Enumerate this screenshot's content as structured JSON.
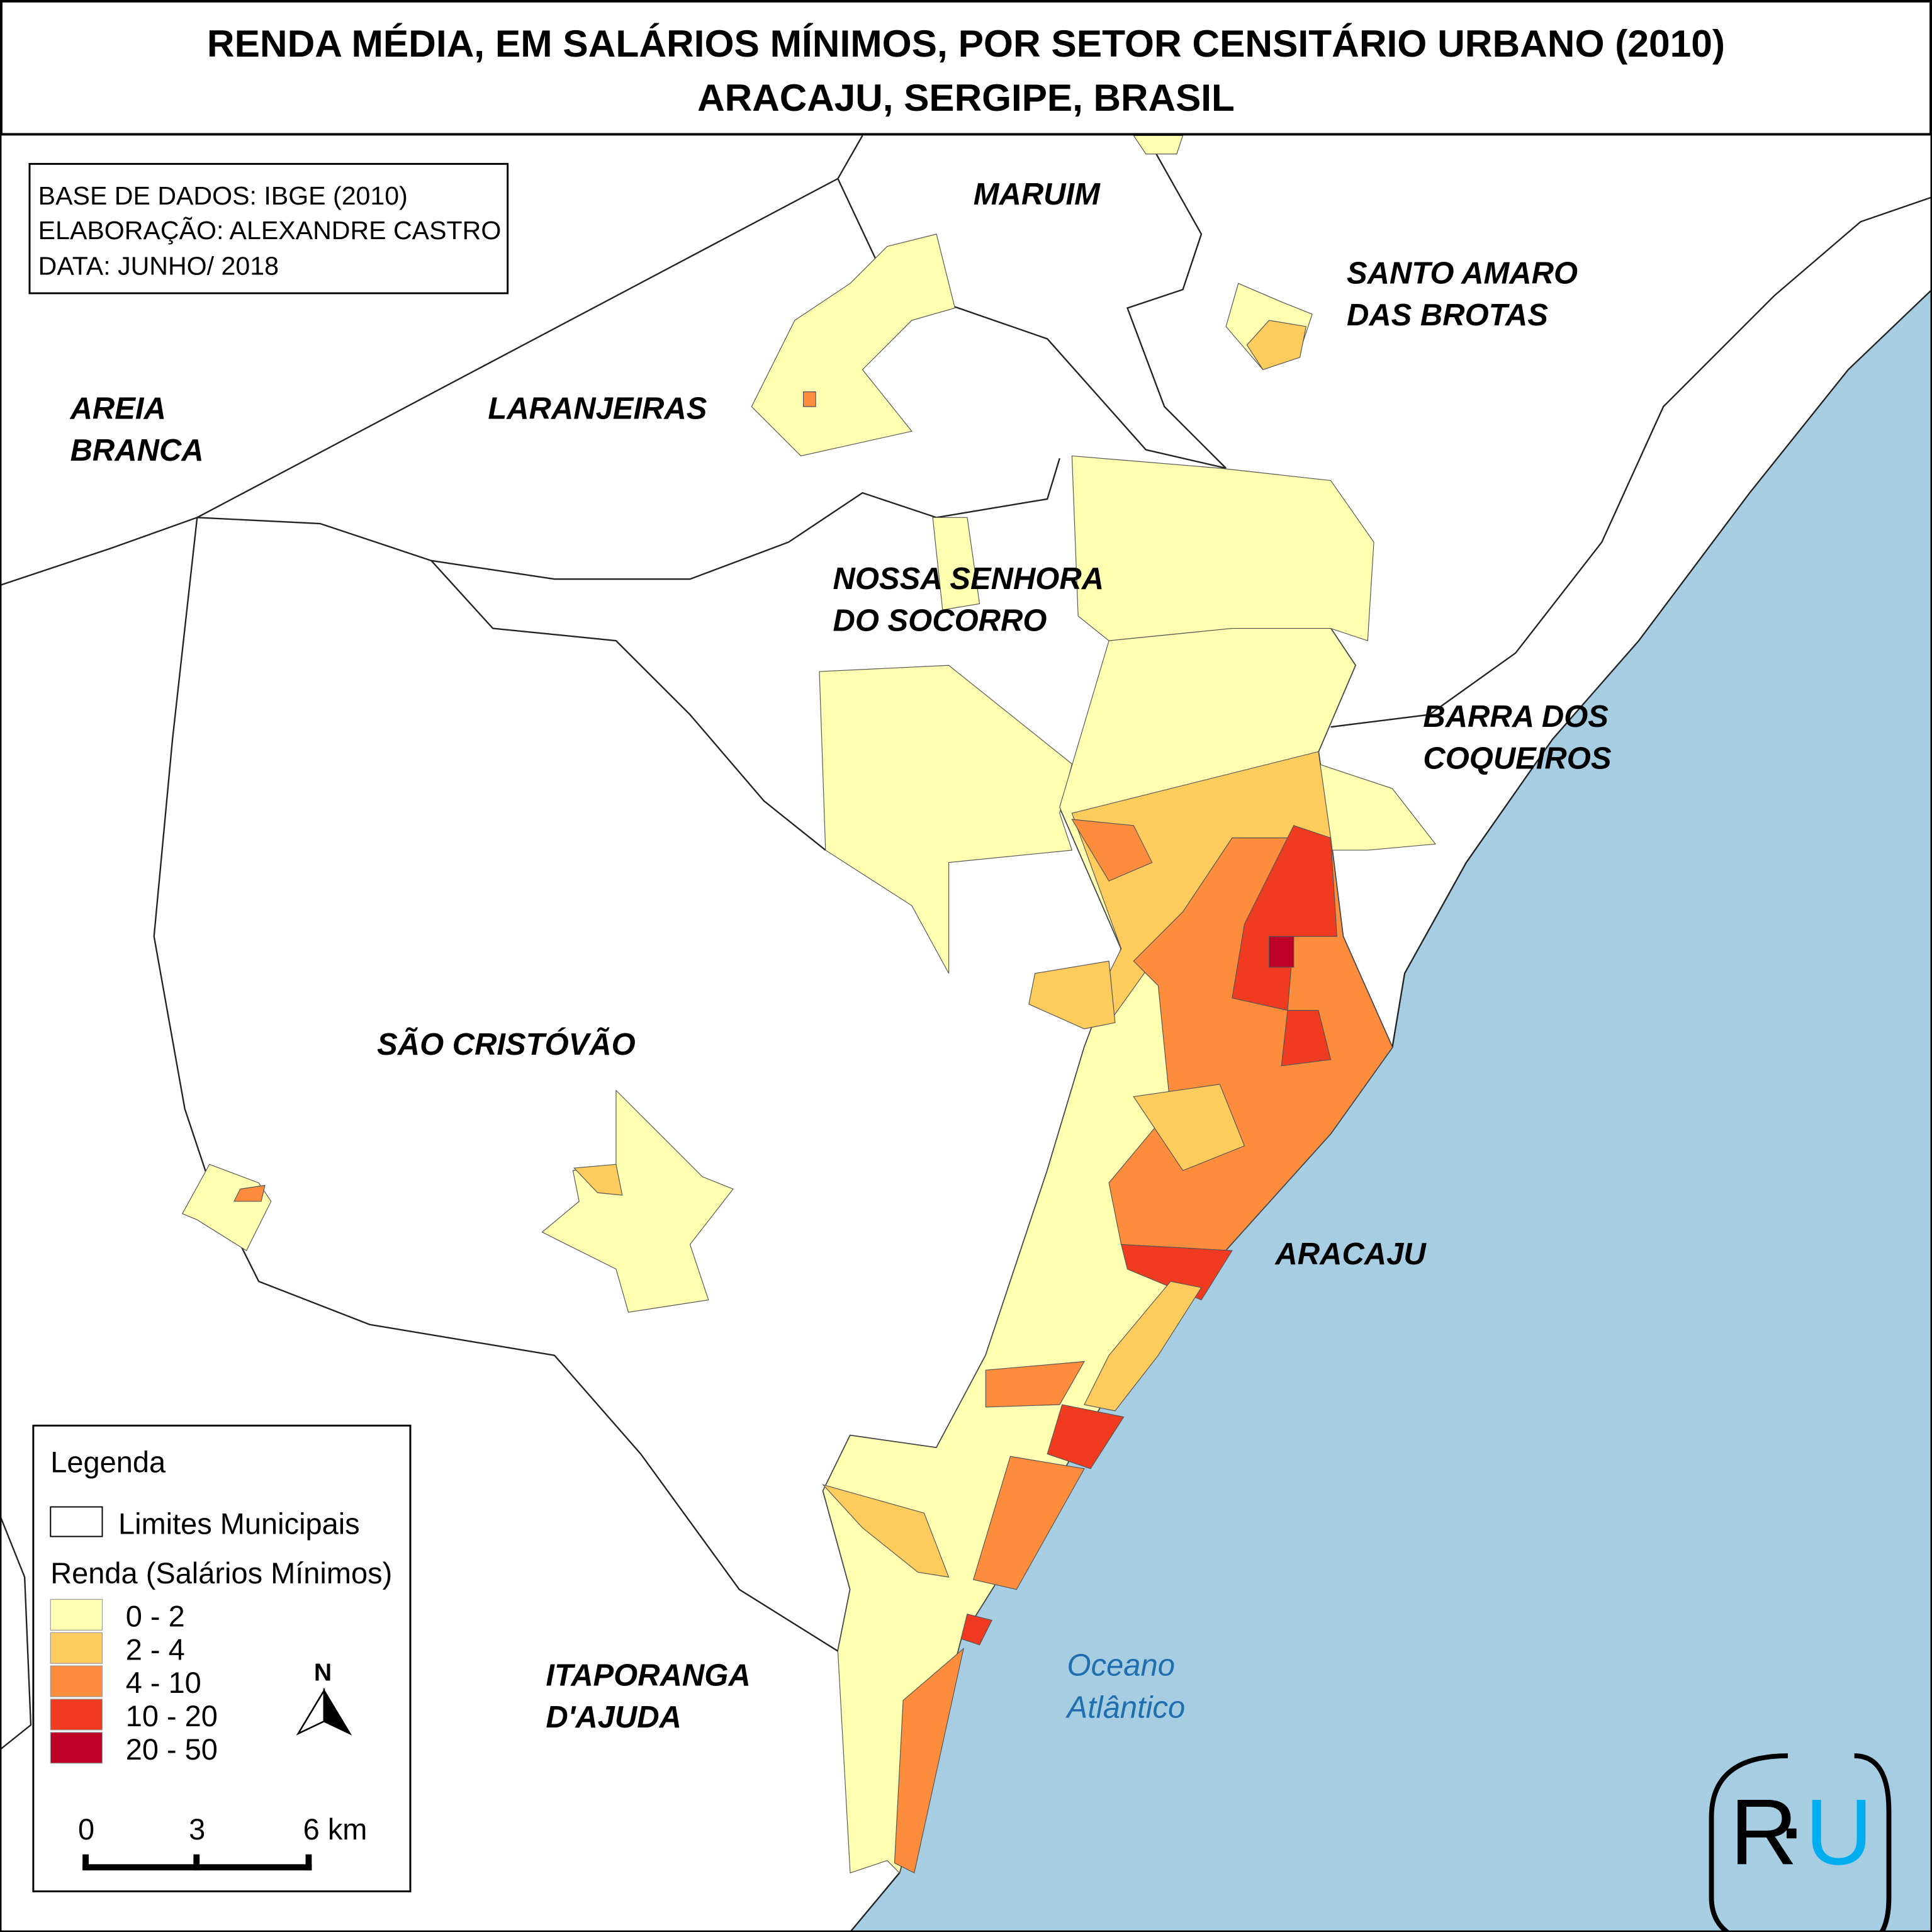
{
  "title": {
    "line1": "RENDA MÉDIA, EM SALÁRIOS MÍNIMOS, POR SETOR CENSITÁRIO URBANO (2010)",
    "line2": "ARACAJU, SERGIPE, BRASIL"
  },
  "credits": [
    "BASE DE DADOS: IBGE (2010)",
    "ELABORAÇÃO: ALEXANDRE CASTRO",
    "DATA: JUNHO/ 2018"
  ],
  "places": {
    "maruim": "MARUIM",
    "santo_amaro_1": "SANTO AMARO",
    "santo_amaro_2": "DAS BROTAS",
    "laranjeiras": "LARANJEIRAS",
    "areia_branca_1": "AREIA",
    "areia_branca_2": "BRANCA",
    "socorro_1": "NOSSA SENHORA",
    "socorro_2": "DO SOCORRO",
    "barra_1": "BARRA DOS",
    "barra_2": "COQUEIROS",
    "sao_cristovao": "SÃO CRISTÓVÃO",
    "aracaju": "ARACAJU",
    "itaporanga_1": "ITAPORANGA",
    "itaporanga_2": "D'AJUDA",
    "ocean_1": "Oceano",
    "ocean_2": "Atlântico"
  },
  "legend": {
    "title": "Legenda",
    "boundaries_label": "Limites Municipais",
    "renda_title": "Renda (Salários Mínimos)",
    "classes": [
      {
        "label": "0 - 2",
        "color": "#ffffb2"
      },
      {
        "label": "2 - 4",
        "color": "#fecc5c"
      },
      {
        "label": "4 - 10",
        "color": "#fd8d3c"
      },
      {
        "label": "10 - 20",
        "color": "#f03b20"
      },
      {
        "label": "20 - 50",
        "color": "#bd0026"
      }
    ],
    "north": "N",
    "scale": {
      "ticks": [
        "0",
        "3",
        "6 km"
      ]
    }
  },
  "logo": {
    "left": "R",
    "right": "U",
    "right_color": "#00aeef"
  },
  "colors": {
    "ocean": "#a6cde1"
  }
}
